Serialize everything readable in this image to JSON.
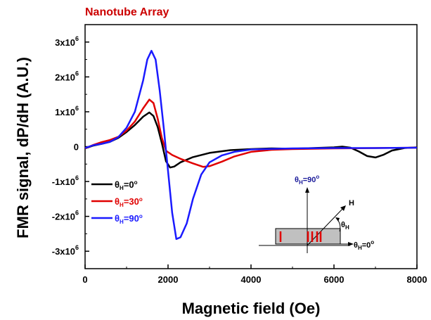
{
  "chart_data": {
    "type": "line",
    "title": "Nanotube Array",
    "xlabel": "Magnetic field (Oe)",
    "ylabel": "FMR signal, dP/dH (A.U.)",
    "xlim": [
      0,
      8000
    ],
    "ylim": [
      -3500000,
      3500000
    ],
    "x_ticks": [
      0,
      2000,
      4000,
      6000,
      8000
    ],
    "x_tick_labels": [
      "0",
      "2000",
      "4000",
      "6000",
      "8000"
    ],
    "y_ticks": [
      3000000,
      2000000,
      1000000,
      0,
      -1000000,
      -2000000,
      -3000000
    ],
    "y_tick_labels": [
      {
        "base": "3x10",
        "exp": "6"
      },
      {
        "base": "2x10",
        "exp": "6"
      },
      {
        "base": "1x10",
        "exp": "6"
      },
      {
        "base": "0",
        "exp": ""
      },
      {
        "base": "-1x10",
        "exp": "6"
      },
      {
        "base": "-2x10",
        "exp": "6"
      },
      {
        "base": "-3x10",
        "exp": "6"
      }
    ],
    "grid": false,
    "legend_position": "lower-left",
    "series": [
      {
        "label": {
          "theta": "θ",
          "sub": "H",
          "rest": "=0",
          "deg": "o"
        },
        "color": "#000000",
        "points": [
          [
            0,
            -50000
          ],
          [
            200,
            30000
          ],
          [
            400,
            80000
          ],
          [
            600,
            140000
          ],
          [
            800,
            250000
          ],
          [
            1000,
            420000
          ],
          [
            1200,
            620000
          ],
          [
            1400,
            860000
          ],
          [
            1550,
            980000
          ],
          [
            1650,
            880000
          ],
          [
            1750,
            560000
          ],
          [
            1850,
            100000
          ],
          [
            1950,
            -420000
          ],
          [
            2050,
            -600000
          ],
          [
            2150,
            -570000
          ],
          [
            2300,
            -450000
          ],
          [
            2600,
            -300000
          ],
          [
            3000,
            -180000
          ],
          [
            3500,
            -100000
          ],
          [
            4000,
            -70000
          ],
          [
            4500,
            -50000
          ],
          [
            5000,
            -60000
          ],
          [
            5500,
            -40000
          ],
          [
            6000,
            -20000
          ],
          [
            6200,
            0
          ],
          [
            6400,
            -30000
          ],
          [
            6600,
            -140000
          ],
          [
            6800,
            -270000
          ],
          [
            7000,
            -310000
          ],
          [
            7200,
            -230000
          ],
          [
            7400,
            -110000
          ],
          [
            7700,
            -40000
          ],
          [
            8000,
            -20000
          ]
        ]
      },
      {
        "label": {
          "theta": "θ",
          "sub": "H",
          "rest": "=30",
          "deg": "o"
        },
        "color": "#e00000",
        "points": [
          [
            0,
            -50000
          ],
          [
            200,
            50000
          ],
          [
            400,
            130000
          ],
          [
            600,
            190000
          ],
          [
            800,
            280000
          ],
          [
            1000,
            460000
          ],
          [
            1200,
            720000
          ],
          [
            1400,
            1100000
          ],
          [
            1550,
            1350000
          ],
          [
            1650,
            1250000
          ],
          [
            1750,
            800000
          ],
          [
            1850,
            250000
          ],
          [
            1950,
            -120000
          ],
          [
            2100,
            -240000
          ],
          [
            2300,
            -350000
          ],
          [
            2600,
            -480000
          ],
          [
            2850,
            -580000
          ],
          [
            3000,
            -560000
          ],
          [
            3300,
            -430000
          ],
          [
            3600,
            -280000
          ],
          [
            4000,
            -150000
          ],
          [
            4500,
            -90000
          ],
          [
            5000,
            -70000
          ],
          [
            6000,
            -50000
          ],
          [
            7000,
            -40000
          ],
          [
            8000,
            -30000
          ]
        ]
      },
      {
        "label": {
          "theta": "θ",
          "sub": "H",
          "rest": "=90",
          "deg": "o"
        },
        "color": "#1a1aff",
        "points": [
          [
            0,
            -40000
          ],
          [
            200,
            40000
          ],
          [
            400,
            80000
          ],
          [
            600,
            140000
          ],
          [
            800,
            270000
          ],
          [
            1000,
            540000
          ],
          [
            1200,
            1000000
          ],
          [
            1400,
            1900000
          ],
          [
            1500,
            2500000
          ],
          [
            1600,
            2750000
          ],
          [
            1700,
            2500000
          ],
          [
            1800,
            1600000
          ],
          [
            1900,
            500000
          ],
          [
            2000,
            -700000
          ],
          [
            2100,
            -1900000
          ],
          [
            2200,
            -2650000
          ],
          [
            2300,
            -2600000
          ],
          [
            2450,
            -2200000
          ],
          [
            2600,
            -1500000
          ],
          [
            2800,
            -800000
          ],
          [
            3000,
            -450000
          ],
          [
            3300,
            -250000
          ],
          [
            3600,
            -150000
          ],
          [
            4000,
            -80000
          ],
          [
            5000,
            -50000
          ],
          [
            6000,
            -40000
          ],
          [
            7000,
            -40000
          ],
          [
            8000,
            -30000
          ]
        ]
      }
    ],
    "inset": {
      "label_90": {
        "theta": "θ",
        "sub": "H",
        "rest": "=90",
        "deg": "o"
      },
      "label_0": {
        "theta": "θ",
        "sub": "H",
        "rest": "=0",
        "deg": "o"
      },
      "label_h": "H",
      "label_theta": {
        "theta": "θ",
        "sub": "H"
      }
    }
  }
}
